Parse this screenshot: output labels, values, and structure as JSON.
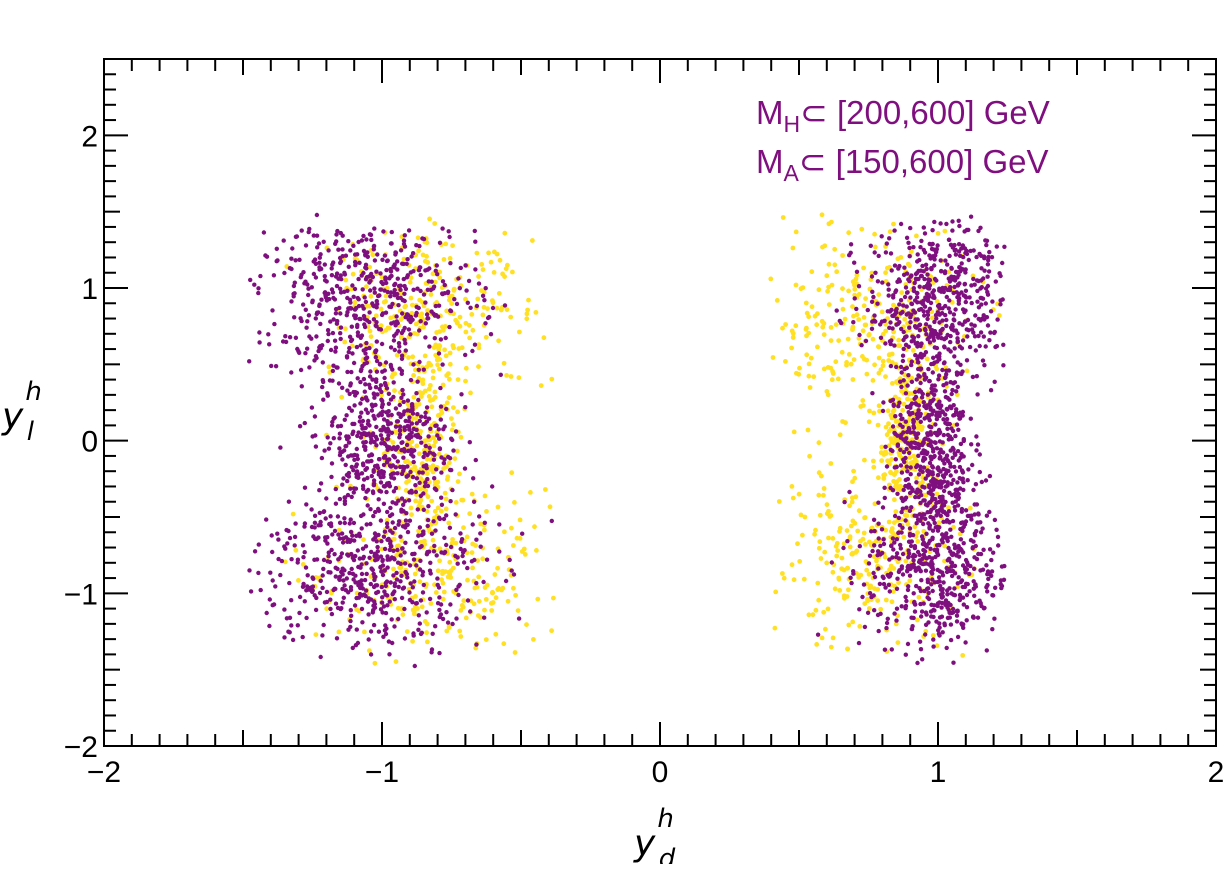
{
  "chart_data": {
    "type": "scatter",
    "title": "",
    "xlabel": "y",
    "xlabel_sup": "h",
    "xlabel_sub": "d",
    "ylabel": "y",
    "ylabel_sup": "h",
    "ylabel_sub": "l",
    "xlim": [
      -2,
      2
    ],
    "ylim": [
      -2,
      2.5
    ],
    "xticks": [
      -2,
      -1,
      0,
      1,
      2
    ],
    "yticks": [
      -2,
      -1,
      0,
      1,
      2
    ],
    "xtick_labels": [
      "−2",
      "−1",
      "0",
      "1",
      "2"
    ],
    "ytick_labels": [
      "−2",
      "−1",
      "0",
      "1",
      "2"
    ],
    "grid": false,
    "annotations": [
      {
        "main": "M",
        "sub": "H",
        "rest": "⊂ [200,600] GeV",
        "color": "#7f0f7e"
      },
      {
        "main": "M",
        "sub": "A",
        "rest": "⊂ [150,600] GeV",
        "color": "#7f0f7e"
      }
    ],
    "series": [
      {
        "name": "yellow",
        "color": "#ffe022",
        "clusters": [
          {
            "cx": -0.8,
            "cy": 0.9,
            "sx": 0.2,
            "sy": 0.28
          },
          {
            "cx": -0.8,
            "cy": -0.85,
            "sx": 0.2,
            "sy": 0.28
          },
          {
            "cx": 0.75,
            "cy": 0.8,
            "sx": 0.18,
            "sy": 0.3
          },
          {
            "cx": 0.75,
            "cy": -0.8,
            "sx": 0.18,
            "sy": 0.3
          },
          {
            "cx": -0.85,
            "cy": 0.0,
            "sx": 0.08,
            "sy": 0.35
          },
          {
            "cx": 0.88,
            "cy": 0.0,
            "sx": 0.05,
            "sy": 0.3
          }
        ],
        "shape": [
          {
            "x": -1.35,
            "y": 1.48
          },
          {
            "x": -1.1,
            "y": 1.48
          },
          {
            "x": -0.7,
            "y": 1.15
          },
          {
            "x": -0.4,
            "y": 0.78
          },
          {
            "x": -0.65,
            "y": 0.2
          },
          {
            "x": -0.85,
            "y": 0.0
          },
          {
            "x": -0.65,
            "y": -0.2
          },
          {
            "x": -0.4,
            "y": -0.7
          },
          {
            "x": -0.65,
            "y": -1.2
          },
          {
            "x": -1.1,
            "y": -1.48
          },
          {
            "x": -1.3,
            "y": -1.48
          },
          {
            "x": 0.4,
            "y": 0.78
          },
          {
            "x": 0.65,
            "y": 1.15
          },
          {
            "x": 1.0,
            "y": 1.45
          },
          {
            "x": 1.25,
            "y": 1.3
          },
          {
            "x": 1.25,
            "y": -1.2
          },
          {
            "x": 1.0,
            "y": -1.45
          },
          {
            "x": 0.65,
            "y": -1.2
          },
          {
            "x": 0.4,
            "y": -0.65
          },
          {
            "x": 0.6,
            "y": -0.3
          },
          {
            "x": 0.88,
            "y": 0.0
          },
          {
            "x": 0.6,
            "y": 0.3
          }
        ]
      },
      {
        "name": "purple",
        "color": "#7f0f7e",
        "clusters": [
          {
            "cx": -1.05,
            "cy": 0.95,
            "sx": 0.2,
            "sy": 0.25
          },
          {
            "cx": -1.05,
            "cy": -0.85,
            "sx": 0.2,
            "sy": 0.27
          },
          {
            "cx": 1.0,
            "cy": 0.95,
            "sx": 0.13,
            "sy": 0.25
          },
          {
            "cx": 1.0,
            "cy": -0.85,
            "sx": 0.13,
            "sy": 0.28
          },
          {
            "cx": -1.0,
            "cy": 0.0,
            "sx": 0.12,
            "sy": 0.3
          },
          {
            "cx": 0.97,
            "cy": 0.0,
            "sx": 0.07,
            "sy": 0.35
          }
        ]
      }
    ]
  }
}
